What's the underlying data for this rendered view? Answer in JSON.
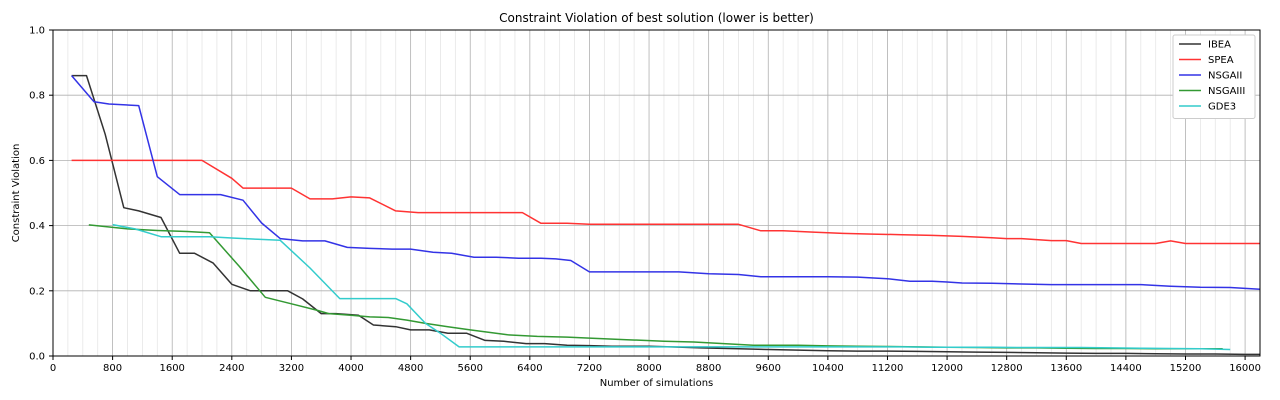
{
  "chart_data": {
    "type": "line",
    "title": "Constraint Violation of best solution (lower is better)",
    "xlabel": "Number of simulations",
    "ylabel": "Constraint Violation",
    "xlim": [
      0,
      16200
    ],
    "ylim": [
      0,
      1.0
    ],
    "x_ticks": [
      0,
      800,
      1600,
      2400,
      3200,
      4000,
      4800,
      5600,
      6400,
      7200,
      8000,
      8800,
      9600,
      10400,
      11200,
      12000,
      12800,
      13600,
      14400,
      15200,
      16000
    ],
    "y_ticks": [
      0.0,
      0.2,
      0.4,
      0.6,
      0.8,
      1.0
    ],
    "x_minor_step": 200,
    "grid": true,
    "legend_position": "top-right",
    "series": [
      {
        "name": "IBEA",
        "color": "#333333",
        "x": [
          250,
          450,
          700,
          950,
          1150,
          1450,
          1700,
          1900,
          2150,
          2400,
          2650,
          2950,
          3150,
          3350,
          3600,
          3800,
          4100,
          4300,
          4600,
          4800,
          5050,
          5300,
          5550,
          5800,
          6050,
          6350,
          6600,
          6900,
          7200,
          7500,
          8000,
          8300,
          8700,
          9200,
          9600,
          10000,
          10400,
          10800,
          11200,
          11600,
          12000,
          12400,
          12800,
          13200,
          13600,
          14000,
          14400,
          14800,
          15200,
          15600,
          16000,
          16200
        ],
        "y": [
          0.86,
          0.86,
          0.68,
          0.455,
          0.445,
          0.425,
          0.315,
          0.315,
          0.285,
          0.22,
          0.2,
          0.2,
          0.2,
          0.175,
          0.13,
          0.13,
          0.125,
          0.095,
          0.09,
          0.08,
          0.08,
          0.07,
          0.07,
          0.048,
          0.045,
          0.038,
          0.038,
          0.033,
          0.032,
          0.03,
          0.03,
          0.028,
          0.025,
          0.022,
          0.02,
          0.018,
          0.016,
          0.015,
          0.015,
          0.014,
          0.013,
          0.012,
          0.011,
          0.01,
          0.009,
          0.008,
          0.008,
          0.007,
          0.006,
          0.006,
          0.005,
          0.005
        ]
      },
      {
        "name": "SPEA",
        "color": "#ff3333",
        "x": [
          250,
          800,
          1200,
          1600,
          2000,
          2400,
          2550,
          2900,
          3200,
          3450,
          3750,
          4000,
          4250,
          4600,
          4900,
          5200,
          5600,
          6000,
          6300,
          6550,
          6900,
          7200,
          7600,
          8000,
          8400,
          8800,
          9200,
          9500,
          9800,
          10200,
          10600,
          11000,
          11400,
          11800,
          12200,
          12600,
          12800,
          13000,
          13400,
          13600,
          13800,
          14200,
          14600,
          14800,
          15000,
          15200,
          15600,
          16000,
          16200
        ],
        "y": [
          0.6,
          0.6,
          0.6,
          0.6,
          0.6,
          0.545,
          0.515,
          0.515,
          0.515,
          0.482,
          0.482,
          0.488,
          0.485,
          0.445,
          0.44,
          0.44,
          0.44,
          0.44,
          0.44,
          0.407,
          0.407,
          0.404,
          0.404,
          0.404,
          0.404,
          0.404,
          0.404,
          0.384,
          0.384,
          0.38,
          0.376,
          0.374,
          0.372,
          0.37,
          0.367,
          0.363,
          0.36,
          0.36,
          0.354,
          0.354,
          0.345,
          0.345,
          0.345,
          0.345,
          0.353,
          0.345,
          0.345,
          0.345,
          0.345
        ]
      },
      {
        "name": "NSGAII",
        "color": "#3333e6",
        "x": [
          250,
          550,
          750,
          1150,
          1400,
          1700,
          2000,
          2250,
          2550,
          2800,
          3050,
          3350,
          3650,
          3950,
          4250,
          4550,
          4800,
          5100,
          5350,
          5650,
          5950,
          6250,
          6550,
          6750,
          6950,
          7200,
          7600,
          8000,
          8400,
          8800,
          9200,
          9500,
          9900,
          10400,
          10800,
          11200,
          11500,
          11800,
          12000,
          12200,
          12600,
          13000,
          13400,
          13800,
          14200,
          14600,
          15000,
          15400,
          15800,
          16200
        ],
        "y": [
          0.86,
          0.78,
          0.773,
          0.768,
          0.55,
          0.495,
          0.495,
          0.495,
          0.478,
          0.408,
          0.36,
          0.353,
          0.353,
          0.333,
          0.33,
          0.328,
          0.328,
          0.318,
          0.315,
          0.303,
          0.303,
          0.3,
          0.3,
          0.298,
          0.293,
          0.258,
          0.258,
          0.258,
          0.258,
          0.252,
          0.25,
          0.243,
          0.243,
          0.243,
          0.242,
          0.237,
          0.229,
          0.229,
          0.227,
          0.224,
          0.223,
          0.221,
          0.219,
          0.219,
          0.219,
          0.219,
          0.214,
          0.211,
          0.21,
          0.205
        ]
      },
      {
        "name": "NSGAIII",
        "color": "#339933",
        "x": [
          480,
          1000,
          1400,
          1800,
          2100,
          2500,
          2850,
          3200,
          3550,
          3700,
          4000,
          4250,
          4500,
          4750,
          5000,
          5300,
          5600,
          6100,
          6500,
          6900,
          7200,
          7700,
          8200,
          8600,
          9000,
          9400,
          10000,
          10400,
          10800,
          11200,
          11600,
          12000,
          12400,
          12800,
          13200,
          13600,
          14000,
          14400,
          14800,
          15200,
          15700
        ],
        "y": [
          0.402,
          0.39,
          0.385,
          0.382,
          0.378,
          0.275,
          0.18,
          0.16,
          0.14,
          0.13,
          0.125,
          0.12,
          0.118,
          0.11,
          0.1,
          0.09,
          0.08,
          0.065,
          0.06,
          0.058,
          0.055,
          0.05,
          0.045,
          0.043,
          0.038,
          0.033,
          0.033,
          0.031,
          0.03,
          0.029,
          0.028,
          0.027,
          0.026,
          0.025,
          0.025,
          0.024,
          0.023,
          0.023,
          0.022,
          0.022,
          0.022
        ]
      },
      {
        "name": "GDE3",
        "color": "#33cccc",
        "x": [
          800,
          1100,
          1450,
          1750,
          2100,
          2400,
          2750,
          3050,
          3450,
          3850,
          4250,
          4600,
          4750,
          5000,
          5200,
          5450,
          5800,
          6200,
          6600,
          7000,
          7400,
          7800,
          8200,
          8600,
          9000,
          9400,
          9800,
          10200,
          10600,
          11000,
          11400,
          11800,
          12200,
          12600,
          13000,
          13400,
          13800,
          14200,
          14600,
          15000,
          15400,
          15800
        ],
        "y": [
          0.403,
          0.39,
          0.366,
          0.366,
          0.366,
          0.362,
          0.358,
          0.355,
          0.27,
          0.176,
          0.176,
          0.176,
          0.16,
          0.1,
          0.07,
          0.028,
          0.028,
          0.028,
          0.028,
          0.028,
          0.028,
          0.028,
          0.028,
          0.028,
          0.028,
          0.028,
          0.028,
          0.028,
          0.028,
          0.028,
          0.028,
          0.027,
          0.027,
          0.027,
          0.026,
          0.026,
          0.026,
          0.025,
          0.024,
          0.023,
          0.022,
          0.02
        ]
      }
    ]
  }
}
